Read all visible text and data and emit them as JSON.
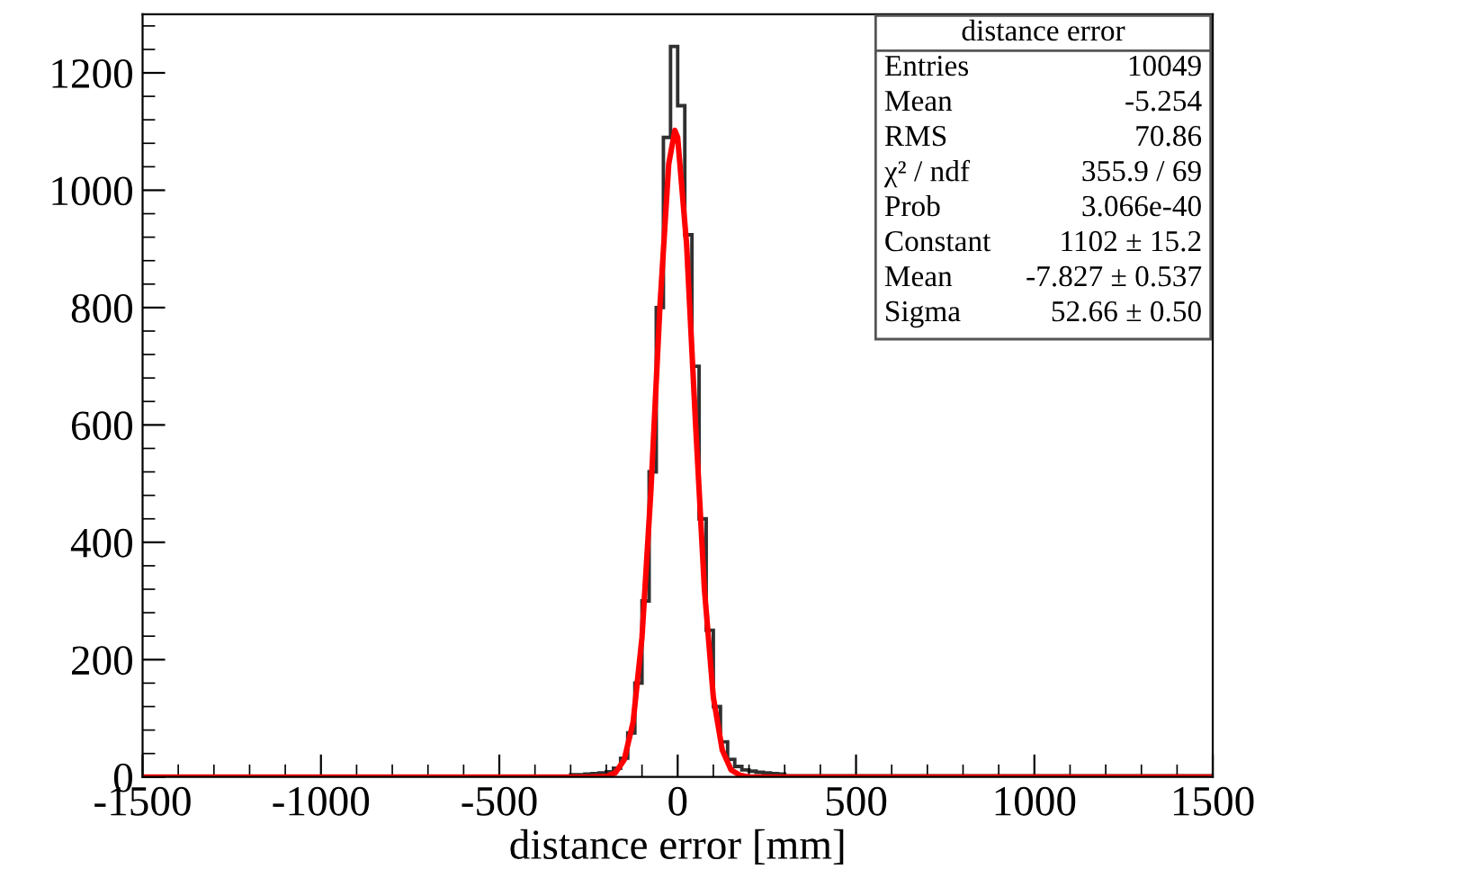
{
  "chart_data": {
    "type": "histogram",
    "xlabel": "distance error [mm]",
    "bins": [
      -1500,
      -300,
      -280,
      -260,
      -240,
      -220,
      -200,
      -180,
      -160,
      -140,
      -120,
      -100,
      -80,
      -60,
      -40,
      -20,
      0,
      20,
      40,
      60,
      80,
      100,
      120,
      140,
      160,
      180,
      200,
      220,
      240,
      260,
      280,
      300,
      1500
    ],
    "values": [
      1,
      4,
      4,
      5,
      6,
      7,
      9,
      15,
      32,
      75,
      160,
      300,
      520,
      800,
      1090,
      1245,
      1144,
      924,
      700,
      440,
      250,
      120,
      60,
      30,
      18,
      12,
      10,
      8,
      7,
      6,
      5,
      2
    ],
    "color": "#303030",
    "series": [
      {
        "type": "line",
        "color": "#ff0000",
        "x": [
          -1500,
          -300,
          -250,
          -200,
          -175,
          -150,
          -125,
          -100,
          -75,
          -50,
          -25,
          -8,
          0,
          25,
          50,
          75,
          100,
          125,
          150,
          175,
          200,
          250,
          300,
          1500
        ],
        "values": [
          0,
          0,
          0,
          1,
          7,
          29,
          93,
          238,
          488,
          799,
          1045,
          1102,
          1090,
          908,
          604,
          320,
          136,
          46,
          12,
          3,
          0,
          0,
          0,
          0
        ]
      }
    ],
    "xlim": [
      -1500,
      1500
    ],
    "xticks": [
      -1500,
      -1000,
      -500,
      0,
      500,
      1000,
      1500
    ],
    "ylim": [
      0,
      1300
    ],
    "yticks": [
      0,
      200,
      400,
      600,
      800,
      1000,
      1200
    ],
    "grid": false,
    "legend": false,
    "annotations": [
      "distance error",
      "Entries",
      "10049",
      "Mean",
      "-5.254",
      "RMS",
      "70.86",
      "χ² / ndf",
      "355.9 / 69",
      "Prob",
      "3.066e-40",
      "Constant",
      "1102 ± 15.2",
      "Mean",
      "-7.827 ± 0.537",
      "Sigma",
      "52.66 ± 0.50"
    ]
  }
}
